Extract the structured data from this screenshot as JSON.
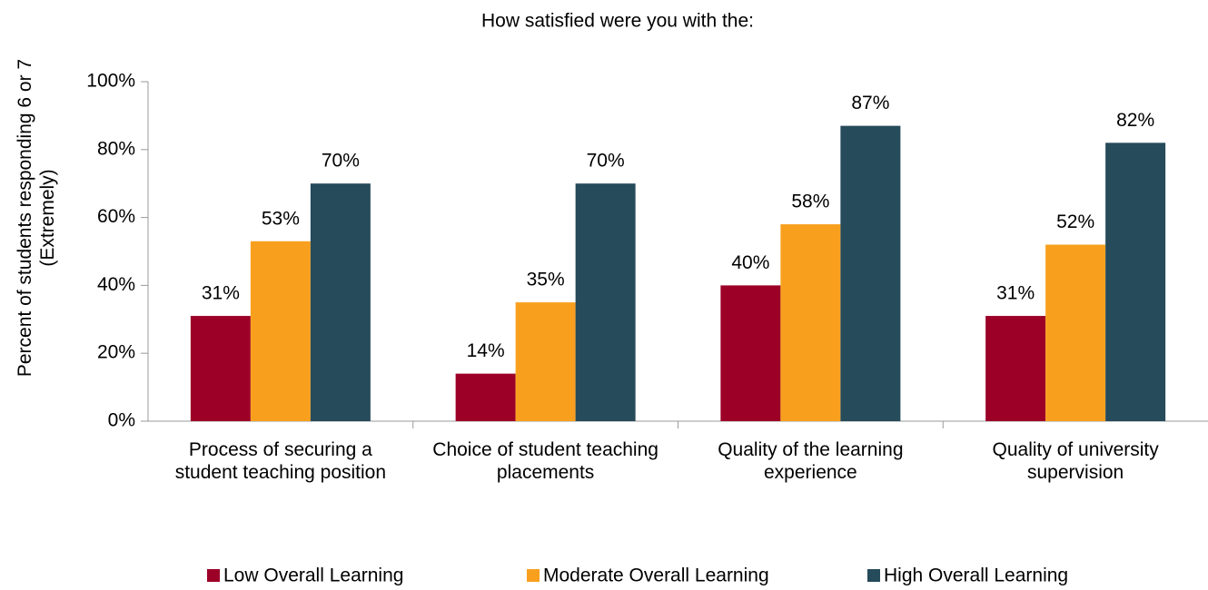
{
  "chart_data": {
    "type": "bar",
    "title": "How satisfied were you with the:",
    "y_label": "Percent of students responding 6 or 7 (Extremely)",
    "categories": [
      "Process of securing a student teaching position",
      "Choice of student teaching placements",
      "Quality of the learning experience",
      "Quality of university supervision"
    ],
    "series": [
      {
        "name": "Low Overall Learning",
        "color": "#9c0027",
        "values": [
          31,
          14,
          40,
          31
        ],
        "value_labels": [
          "31%",
          "14%",
          "40%",
          "31%"
        ]
      },
      {
        "name": "Moderate Overall Learning",
        "color": "#f8a01e",
        "values": [
          53,
          35,
          58,
          52
        ],
        "value_labels": [
          "53%",
          "35%",
          "58%",
          "52%"
        ]
      },
      {
        "name": "High Overall Learning",
        "color": "#264b5b",
        "values": [
          70,
          70,
          87,
          82
        ],
        "value_labels": [
          "70%",
          "70%",
          "87%",
          "82%"
        ]
      }
    ],
    "ylim": [
      0,
      100
    ],
    "yticks": [
      {
        "value": 0,
        "label": "0%"
      },
      {
        "value": 20,
        "label": "20%"
      },
      {
        "value": 40,
        "label": "40%"
      },
      {
        "value": 60,
        "label": "60%"
      },
      {
        "value": 80,
        "label": "80%"
      },
      {
        "value": 100,
        "label": "100%"
      }
    ],
    "grid": false,
    "legend": "bottom"
  }
}
